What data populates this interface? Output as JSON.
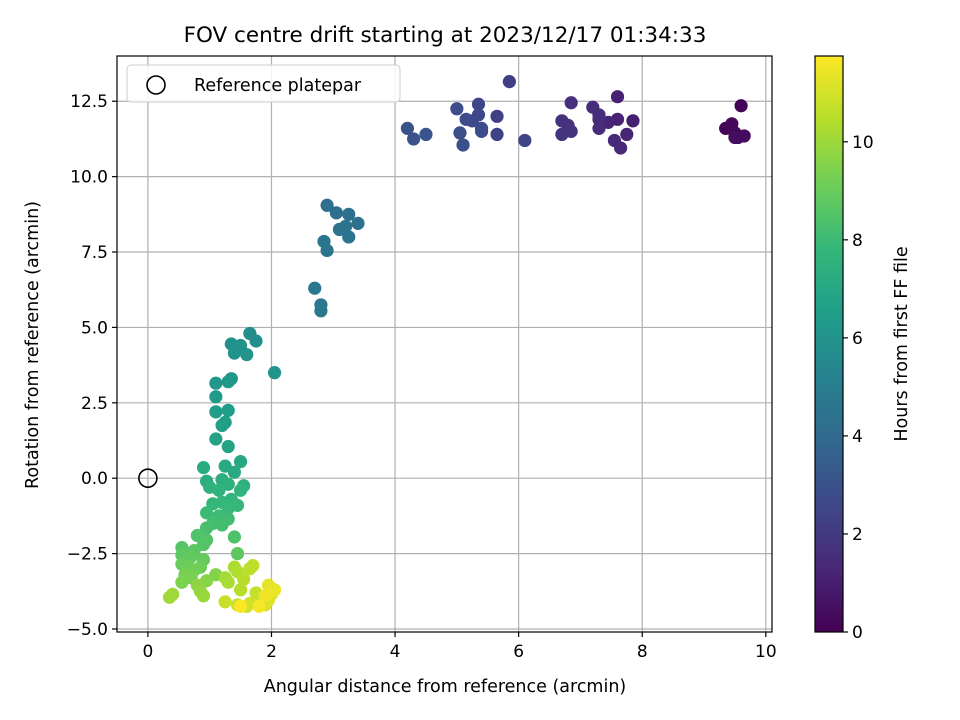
{
  "chart_data": {
    "type": "scatter",
    "title": "FOV centre drift starting at 2023/12/17 01:34:33",
    "xlabel": "Angular distance from reference (arcmin)",
    "ylabel": "Rotation from reference (arcmin)",
    "xlim": [
      -0.5,
      10.1
    ],
    "ylim": [
      -5.1,
      14.0
    ],
    "xticks": [
      0,
      2,
      4,
      6,
      8,
      10
    ],
    "xtick_labels": [
      "0",
      "2",
      "4",
      "6",
      "8",
      "10"
    ],
    "yticks": [
      -5.0,
      -2.5,
      0.0,
      2.5,
      5.0,
      7.5,
      10.0,
      12.5
    ],
    "ytick_labels": [
      "−5.0",
      "−2.5",
      "0.0",
      "2.5",
      "5.0",
      "7.5",
      "10.0",
      "12.5"
    ],
    "grid": true,
    "legend": {
      "placement": "upper-left",
      "entries": [
        "Reference platepar"
      ]
    },
    "reference_point": {
      "x": 0.0,
      "y": 0.0,
      "label": "Reference platepar"
    },
    "colorbar": {
      "label": "Hours from first FF file",
      "colormap": "viridis",
      "range": [
        0,
        11.75
      ],
      "ticks": [
        0,
        2,
        4,
        6,
        8,
        10
      ],
      "tick_labels": [
        "0",
        "2",
        "4",
        "6",
        "8",
        "10"
      ],
      "stops": [
        "#440154",
        "#482878",
        "#3e4989",
        "#31688e",
        "#26828e",
        "#1f9e89",
        "#35b779",
        "#6ece58",
        "#b5de2b",
        "#fde725"
      ]
    },
    "points": [
      {
        "x": 9.6,
        "y": 12.35,
        "t": 0.1
      },
      {
        "x": 9.35,
        "y": 11.6,
        "t": 0.15
      },
      {
        "x": 9.45,
        "y": 11.75,
        "t": 0.2
      },
      {
        "x": 9.5,
        "y": 11.45,
        "t": 0.25
      },
      {
        "x": 9.55,
        "y": 11.3,
        "t": 0.3
      },
      {
        "x": 9.65,
        "y": 11.35,
        "t": 0.35
      },
      {
        "x": 9.5,
        "y": 11.3,
        "t": 0.4
      },
      {
        "x": 7.85,
        "y": 11.85,
        "t": 1.0
      },
      {
        "x": 7.6,
        "y": 12.65,
        "t": 1.1
      },
      {
        "x": 7.6,
        "y": 11.9,
        "t": 1.15
      },
      {
        "x": 7.45,
        "y": 11.8,
        "t": 1.2
      },
      {
        "x": 7.75,
        "y": 11.4,
        "t": 1.25
      },
      {
        "x": 7.55,
        "y": 11.2,
        "t": 1.3
      },
      {
        "x": 7.65,
        "y": 10.95,
        "t": 1.35
      },
      {
        "x": 7.3,
        "y": 11.9,
        "t": 1.4
      },
      {
        "x": 7.2,
        "y": 12.3,
        "t": 1.45
      },
      {
        "x": 7.3,
        "y": 12.05,
        "t": 1.5
      },
      {
        "x": 7.3,
        "y": 11.6,
        "t": 1.55
      },
      {
        "x": 6.85,
        "y": 12.45,
        "t": 1.6
      },
      {
        "x": 6.7,
        "y": 11.85,
        "t": 1.65
      },
      {
        "x": 6.8,
        "y": 11.7,
        "t": 1.7
      },
      {
        "x": 6.85,
        "y": 11.5,
        "t": 1.75
      },
      {
        "x": 6.7,
        "y": 11.4,
        "t": 1.8
      },
      {
        "x": 5.85,
        "y": 13.15,
        "t": 2.2
      },
      {
        "x": 5.65,
        "y": 12.0,
        "t": 2.3
      },
      {
        "x": 5.65,
        "y": 11.4,
        "t": 2.35
      },
      {
        "x": 6.1,
        "y": 11.2,
        "t": 2.4
      },
      {
        "x": 5.35,
        "y": 12.4,
        "t": 2.5
      },
      {
        "x": 5.35,
        "y": 12.05,
        "t": 2.55
      },
      {
        "x": 5.25,
        "y": 11.85,
        "t": 2.6
      },
      {
        "x": 5.15,
        "y": 11.9,
        "t": 2.65
      },
      {
        "x": 5.4,
        "y": 11.6,
        "t": 2.7
      },
      {
        "x": 5.4,
        "y": 11.5,
        "t": 2.75
      },
      {
        "x": 5.0,
        "y": 12.25,
        "t": 2.8
      },
      {
        "x": 5.05,
        "y": 11.45,
        "t": 2.85
      },
      {
        "x": 5.1,
        "y": 11.05,
        "t": 2.9
      },
      {
        "x": 4.2,
        "y": 11.6,
        "t": 3.0
      },
      {
        "x": 4.3,
        "y": 11.25,
        "t": 3.05
      },
      {
        "x": 4.5,
        "y": 11.4,
        "t": 3.1
      },
      {
        "x": 2.9,
        "y": 9.05,
        "t": 4.2
      },
      {
        "x": 3.05,
        "y": 8.8,
        "t": 4.25
      },
      {
        "x": 3.25,
        "y": 8.75,
        "t": 4.3
      },
      {
        "x": 3.4,
        "y": 8.45,
        "t": 4.35
      },
      {
        "x": 3.1,
        "y": 8.25,
        "t": 4.4
      },
      {
        "x": 3.2,
        "y": 8.35,
        "t": 4.45
      },
      {
        "x": 3.25,
        "y": 8.0,
        "t": 4.5
      },
      {
        "x": 2.85,
        "y": 7.85,
        "t": 4.55
      },
      {
        "x": 2.9,
        "y": 7.55,
        "t": 4.6
      },
      {
        "x": 2.7,
        "y": 6.3,
        "t": 4.7
      },
      {
        "x": 2.8,
        "y": 5.75,
        "t": 4.75
      },
      {
        "x": 2.8,
        "y": 5.55,
        "t": 4.8
      },
      {
        "x": 1.65,
        "y": 4.8,
        "t": 5.8
      },
      {
        "x": 1.75,
        "y": 4.55,
        "t": 5.85
      },
      {
        "x": 1.35,
        "y": 4.45,
        "t": 5.9
      },
      {
        "x": 1.5,
        "y": 4.4,
        "t": 5.95
      },
      {
        "x": 1.4,
        "y": 4.15,
        "t": 6.0
      },
      {
        "x": 1.6,
        "y": 4.1,
        "t": 6.05
      },
      {
        "x": 2.05,
        "y": 3.5,
        "t": 6.1
      },
      {
        "x": 1.35,
        "y": 3.3,
        "t": 6.2
      },
      {
        "x": 1.3,
        "y": 3.2,
        "t": 6.25
      },
      {
        "x": 1.1,
        "y": 3.15,
        "t": 6.3
      },
      {
        "x": 1.1,
        "y": 2.7,
        "t": 6.4
      },
      {
        "x": 1.3,
        "y": 2.25,
        "t": 6.5
      },
      {
        "x": 1.1,
        "y": 2.2,
        "t": 6.55
      },
      {
        "x": 1.25,
        "y": 1.85,
        "t": 6.6
      },
      {
        "x": 1.2,
        "y": 1.75,
        "t": 6.65
      },
      {
        "x": 1.1,
        "y": 1.3,
        "t": 6.75
      },
      {
        "x": 1.3,
        "y": 1.05,
        "t": 6.85
      },
      {
        "x": 1.5,
        "y": 0.55,
        "t": 7.0
      },
      {
        "x": 1.25,
        "y": 0.4,
        "t": 7.05
      },
      {
        "x": 1.4,
        "y": 0.2,
        "t": 7.1
      },
      {
        "x": 0.9,
        "y": 0.35,
        "t": 7.2
      },
      {
        "x": 0.95,
        "y": -0.1,
        "t": 7.3
      },
      {
        "x": 1.2,
        "y": -0.05,
        "t": 7.35
      },
      {
        "x": 1.3,
        "y": -0.2,
        "t": 7.4
      },
      {
        "x": 1.55,
        "y": -0.25,
        "t": 7.45
      },
      {
        "x": 1.0,
        "y": -0.3,
        "t": 7.5
      },
      {
        "x": 1.15,
        "y": -0.4,
        "t": 7.55
      },
      {
        "x": 1.5,
        "y": -0.4,
        "t": 7.6
      },
      {
        "x": 1.35,
        "y": -0.7,
        "t": 7.7
      },
      {
        "x": 1.2,
        "y": -0.8,
        "t": 7.75
      },
      {
        "x": 1.05,
        "y": -0.85,
        "t": 7.8
      },
      {
        "x": 1.45,
        "y": -0.9,
        "t": 7.85
      },
      {
        "x": 1.3,
        "y": -1.0,
        "t": 7.9
      },
      {
        "x": 0.95,
        "y": -1.15,
        "t": 8.0
      },
      {
        "x": 1.15,
        "y": -1.25,
        "t": 8.05
      },
      {
        "x": 1.3,
        "y": -1.35,
        "t": 8.1
      },
      {
        "x": 1.05,
        "y": -1.5,
        "t": 8.15
      },
      {
        "x": 1.2,
        "y": -1.55,
        "t": 8.2
      },
      {
        "x": 0.95,
        "y": -1.65,
        "t": 8.3
      },
      {
        "x": 1.4,
        "y": -1.95,
        "t": 8.4
      },
      {
        "x": 0.8,
        "y": -1.9,
        "t": 8.45
      },
      {
        "x": 0.95,
        "y": -2.05,
        "t": 8.5
      },
      {
        "x": 0.9,
        "y": -2.2,
        "t": 8.55
      },
      {
        "x": 0.55,
        "y": -2.3,
        "t": 8.6
      },
      {
        "x": 0.75,
        "y": -2.4,
        "t": 8.7
      },
      {
        "x": 1.45,
        "y": -2.5,
        "t": 8.75
      },
      {
        "x": 0.55,
        "y": -2.55,
        "t": 8.8
      },
      {
        "x": 0.7,
        "y": -2.6,
        "t": 8.85
      },
      {
        "x": 0.9,
        "y": -2.7,
        "t": 8.9
      },
      {
        "x": 0.55,
        "y": -2.85,
        "t": 9.0
      },
      {
        "x": 0.65,
        "y": -2.9,
        "t": 9.05
      },
      {
        "x": 0.85,
        "y": -2.95,
        "t": 9.1
      },
      {
        "x": 0.75,
        "y": -3.05,
        "t": 9.2
      },
      {
        "x": 0.6,
        "y": -3.2,
        "t": 9.3
      },
      {
        "x": 0.7,
        "y": -3.3,
        "t": 9.35
      },
      {
        "x": 0.55,
        "y": -3.45,
        "t": 9.4
      },
      {
        "x": 1.1,
        "y": -3.2,
        "t": 9.5
      },
      {
        "x": 0.95,
        "y": -3.4,
        "t": 9.6
      },
      {
        "x": 0.8,
        "y": -3.55,
        "t": 9.7
      },
      {
        "x": 0.85,
        "y": -3.75,
        "t": 9.8
      },
      {
        "x": 0.9,
        "y": -3.9,
        "t": 9.9
      },
      {
        "x": 0.4,
        "y": -3.85,
        "t": 10.0
      },
      {
        "x": 0.35,
        "y": -3.95,
        "t": 10.05
      },
      {
        "x": 1.25,
        "y": -3.3,
        "t": 10.1
      },
      {
        "x": 1.3,
        "y": -3.45,
        "t": 10.2
      },
      {
        "x": 1.4,
        "y": -2.95,
        "t": 10.3
      },
      {
        "x": 1.45,
        "y": -3.1,
        "t": 10.35
      },
      {
        "x": 1.5,
        "y": -3.7,
        "t": 10.45
      },
      {
        "x": 1.55,
        "y": -3.35,
        "t": 10.5
      },
      {
        "x": 1.65,
        "y": -3.0,
        "t": 10.55
      },
      {
        "x": 1.7,
        "y": -2.9,
        "t": 10.6
      },
      {
        "x": 1.75,
        "y": -3.8,
        "t": 10.7
      },
      {
        "x": 1.25,
        "y": -4.1,
        "t": 10.8
      },
      {
        "x": 1.45,
        "y": -4.2,
        "t": 10.85
      },
      {
        "x": 1.6,
        "y": -4.25,
        "t": 10.9
      },
      {
        "x": 1.65,
        "y": -4.15,
        "t": 10.95
      },
      {
        "x": 1.8,
        "y": -4.2,
        "t": 11.0
      },
      {
        "x": 1.9,
        "y": -4.2,
        "t": 11.1
      },
      {
        "x": 1.95,
        "y": -4.05,
        "t": 11.15
      },
      {
        "x": 2.0,
        "y": -3.85,
        "t": 11.2
      },
      {
        "x": 1.95,
        "y": -3.55,
        "t": 11.3
      },
      {
        "x": 2.05,
        "y": -3.7,
        "t": 11.4
      },
      {
        "x": 1.9,
        "y": -3.9,
        "t": 11.5
      },
      {
        "x": 1.8,
        "y": -4.25,
        "t": 11.6
      },
      {
        "x": 1.5,
        "y": -4.25,
        "t": 11.7
      }
    ]
  }
}
